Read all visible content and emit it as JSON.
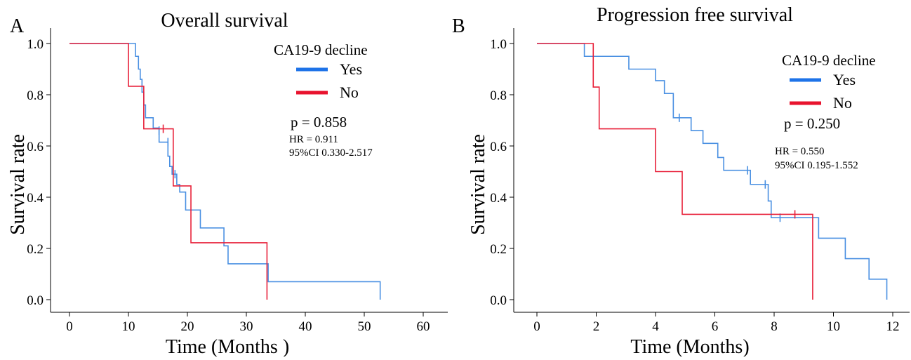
{
  "colors": {
    "yes": "#4a90e2",
    "no": "#e8213a",
    "legend_yes": "#1e73e8",
    "legend_no": "#e8132e"
  },
  "chart_data": [
    {
      "type": "line",
      "panel_letter": "A",
      "title": "Overall survival",
      "xlabel": "Time (Months )",
      "ylabel": "Survival rate",
      "xlim": [
        0,
        60
      ],
      "ylim": [
        0,
        1
      ],
      "x_ticks": [
        0,
        10,
        20,
        30,
        40,
        50,
        60
      ],
      "y_ticks": [
        "0.0",
        "0.2",
        "0.4",
        "0.6",
        "0.8",
        "1.0"
      ],
      "legend_title": "CA19-9 decline",
      "legend_placement": "top-right",
      "grid": false,
      "p_value": "p = 0.858",
      "hr": "HR = 0.911",
      "ci": "95%CI 0.330-2.517",
      "series": [
        {
          "name": "Yes",
          "steps": [
            [
              0,
              1.0
            ],
            [
              11.2,
              0.95
            ],
            [
              11.7,
              0.9
            ],
            [
              12.0,
              0.86
            ],
            [
              12.3,
              0.81
            ],
            [
              12.6,
              0.76
            ],
            [
              12.9,
              0.71
            ],
            [
              14.2,
              0.67
            ],
            [
              15.2,
              0.615
            ],
            [
              16.7,
              0.56
            ],
            [
              17.0,
              0.52
            ],
            [
              17.4,
              0.49
            ],
            [
              18.2,
              0.45
            ],
            [
              18.7,
              0.42
            ],
            [
              19.7,
              0.35
            ],
            [
              22.2,
              0.28
            ],
            [
              26.2,
              0.21
            ],
            [
              26.9,
              0.14
            ],
            [
              33.7,
              0.07
            ],
            [
              52.7,
              0.0
            ]
          ],
          "end": 52.7,
          "censors": [
            [
              15.2,
              0.66
            ],
            [
              16.7,
              0.615
            ],
            [
              17.9,
              0.49
            ]
          ]
        },
        {
          "name": "No",
          "steps": [
            [
              0,
              1.0
            ],
            [
              10.0,
              0.833
            ],
            [
              12.6,
              0.667
            ],
            [
              17.6,
              0.444
            ],
            [
              20.6,
              0.222
            ],
            [
              33.5,
              0.0
            ]
          ],
          "end": 33.5,
          "censors": [
            [
              15.9,
              0.667
            ]
          ]
        }
      ]
    },
    {
      "type": "line",
      "panel_letter": "B",
      "title": "Progression free survival",
      "xlabel": "Time (Months)",
      "ylabel": "Survival rate",
      "xlim": [
        0,
        12
      ],
      "ylim": [
        0,
        1
      ],
      "x_ticks": [
        0,
        2,
        4,
        6,
        8,
        10,
        12
      ],
      "y_ticks": [
        "0.0",
        "0.2",
        "0.4",
        "0.6",
        "0.8",
        "1.0"
      ],
      "legend_title": "CA19-9 decline",
      "legend_placement": "top-right",
      "grid": false,
      "p_value": "p = 0.250",
      "hr": "HR = 0.550",
      "ci": "95%CI 0.195-1.552",
      "series": [
        {
          "name": "Yes",
          "steps": [
            [
              0,
              1.0
            ],
            [
              1.6,
              0.95
            ],
            [
              3.1,
              0.9
            ],
            [
              4.0,
              0.855
            ],
            [
              4.3,
              0.805
            ],
            [
              4.6,
              0.71
            ],
            [
              5.2,
              0.66
            ],
            [
              5.6,
              0.61
            ],
            [
              6.1,
              0.555
            ],
            [
              6.3,
              0.505
            ],
            [
              7.2,
              0.45
            ],
            [
              7.8,
              0.385
            ],
            [
              7.9,
              0.32
            ],
            [
              9.5,
              0.24
            ],
            [
              10.4,
              0.16
            ],
            [
              11.2,
              0.08
            ],
            [
              11.8,
              0.0
            ]
          ],
          "end": 11.8,
          "censors": [
            [
              4.8,
              0.71
            ],
            [
              7.1,
              0.505
            ],
            [
              7.7,
              0.45
            ],
            [
              8.2,
              0.32
            ]
          ]
        },
        {
          "name": "No",
          "steps": [
            [
              0,
              1.0
            ],
            [
              1.9,
              0.83
            ],
            [
              2.1,
              0.667
            ],
            [
              4.0,
              0.5
            ],
            [
              4.9,
              0.333
            ],
            [
              9.3,
              0.0
            ]
          ],
          "end": 9.3,
          "censors": [
            [
              8.7,
              0.333
            ]
          ]
        }
      ]
    }
  ]
}
